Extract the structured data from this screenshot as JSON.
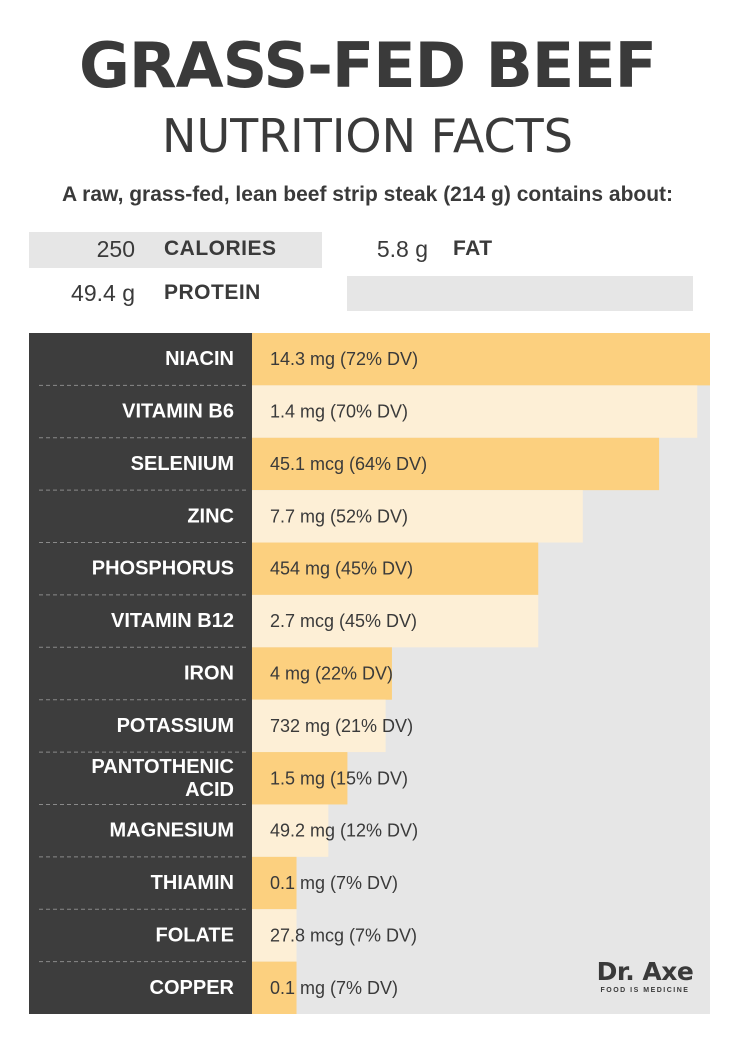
{
  "title": "GRASS-FED BEEF",
  "subtitle": "NUTRITION FACTS",
  "intro": "A raw, grass-fed, lean beef strip steak (214 g) contains about:",
  "macros": [
    {
      "value": "250",
      "label": "CALORIES"
    },
    {
      "value": "5.8 g",
      "label": "FAT"
    },
    {
      "value": "49.4 g",
      "label": "PROTEIN"
    }
  ],
  "colors": {
    "dark_panel": "#3d3d3d",
    "bar_dark": "#fcd07f",
    "bar_light": "#fdefd6",
    "track": "#e6e6e6",
    "text": "#3a3a3a"
  },
  "chart_data": {
    "type": "bar",
    "orientation": "horizontal",
    "unit": "% DV",
    "xlim": [
      0,
      72
    ],
    "grid": false,
    "categories": [
      "NIACIN",
      "VITAMIN B6",
      "SELENIUM",
      "ZINC",
      "PHOSPHORUS",
      "VITAMIN B12",
      "IRON",
      "POTASSIUM",
      "PANTOTHENIC ACID",
      "MAGNESIUM",
      "THIAMIN",
      "FOLATE",
      "COPPER"
    ],
    "category_lines": [
      [
        "NIACIN"
      ],
      [
        "VITAMIN B6"
      ],
      [
        "SELENIUM"
      ],
      [
        "ZINC"
      ],
      [
        "PHOSPHORUS"
      ],
      [
        "VITAMIN B12"
      ],
      [
        "IRON"
      ],
      [
        "POTASSIUM"
      ],
      [
        "PANTOTHENIC",
        "ACID"
      ],
      [
        "MAGNESIUM"
      ],
      [
        "THIAMIN"
      ],
      [
        "FOLATE"
      ],
      [
        "COPPER"
      ]
    ],
    "values": [
      72,
      70,
      64,
      52,
      45,
      45,
      22,
      21,
      15,
      12,
      7,
      7,
      7
    ],
    "amounts": [
      "14.3 mg",
      "1.4 mg",
      "45.1 mcg",
      "7.7 mg",
      "454 mg",
      "2.7 mcg",
      "4 mg",
      "732 mg",
      "1.5 mg",
      "49.2 mg",
      "0.1 mg",
      "27.8 mcg",
      "0.1 mg"
    ],
    "data_labels": [
      "14.3 mg (72% DV)",
      "1.4 mg (70% DV)",
      "45.1 mcg (64% DV)",
      "7.7 mg (52% DV)",
      "454 mg (45% DV)",
      "2.7 mcg (45% DV)",
      "4 mg (22% DV)",
      "732 mg (21% DV)",
      "1.5 mg (15% DV)",
      "49.2 mg (12% DV)",
      "0.1 mg (7% DV)",
      "27.8 mcg (7% DV)",
      "0.1 mg (7% DV)"
    ]
  },
  "logo": {
    "name": "Dr. Axe",
    "tagline": "FOOD IS MEDICINE"
  }
}
